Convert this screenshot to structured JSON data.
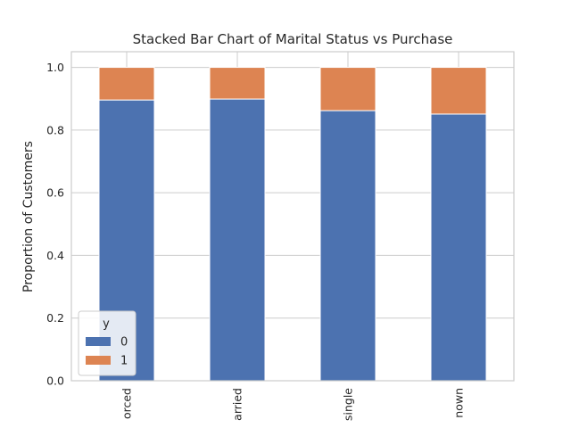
{
  "chart_data": {
    "type": "bar",
    "stacked": true,
    "title": "Stacked Bar Chart of Marital Status vs Purchase",
    "xlabel": "",
    "ylabel": "Proportion of Customers",
    "categories": [
      "orced",
      "arried",
      "single",
      "nown"
    ],
    "series": [
      {
        "name": "0",
        "values": [
          0.896,
          0.899,
          0.862,
          0.851
        ],
        "color": "#4c72b0"
      },
      {
        "name": "1",
        "values": [
          0.104,
          0.101,
          0.138,
          0.149
        ],
        "color": "#dd8452"
      }
    ],
    "ylim": [
      0,
      1.05
    ],
    "yticks": [
      "0.0",
      "0.2",
      "0.4",
      "0.6",
      "0.8",
      "1.0"
    ],
    "grid": true,
    "legend": {
      "title": "y",
      "position": "lower-left"
    }
  }
}
